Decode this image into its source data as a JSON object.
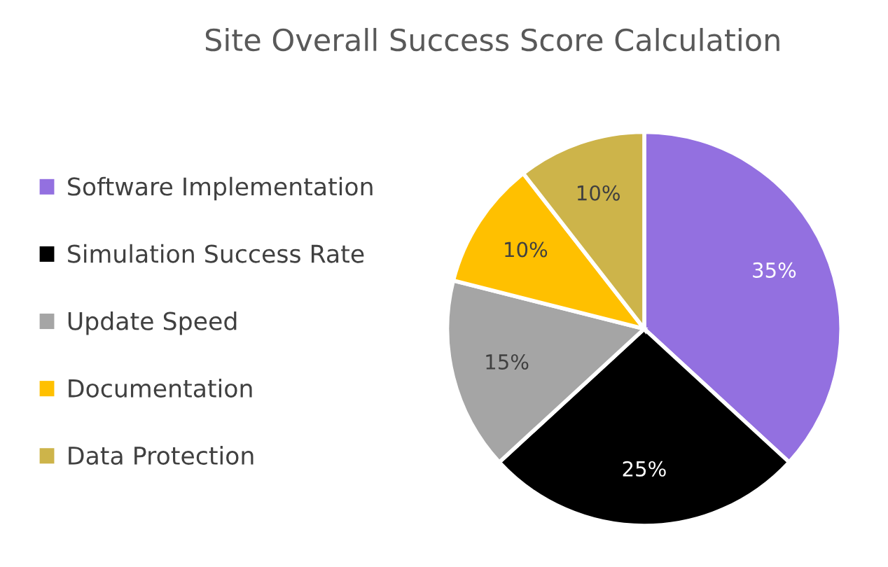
{
  "chart_data": {
    "type": "pie",
    "title": "Site Overall Success Score Calculation",
    "categories": [
      "Software Implementation",
      "Simulation Success Rate",
      "Update Speed",
      "Documentation",
      "Data Protection"
    ],
    "values": [
      35,
      25,
      15,
      10,
      10
    ],
    "colors": [
      "#9370e0",
      "#000000",
      "#a5a5a5",
      "#ffc000",
      "#cdb44a"
    ],
    "value_labels": [
      "35%",
      "25%",
      "15%",
      "10%",
      "10%"
    ],
    "legend": "left"
  }
}
